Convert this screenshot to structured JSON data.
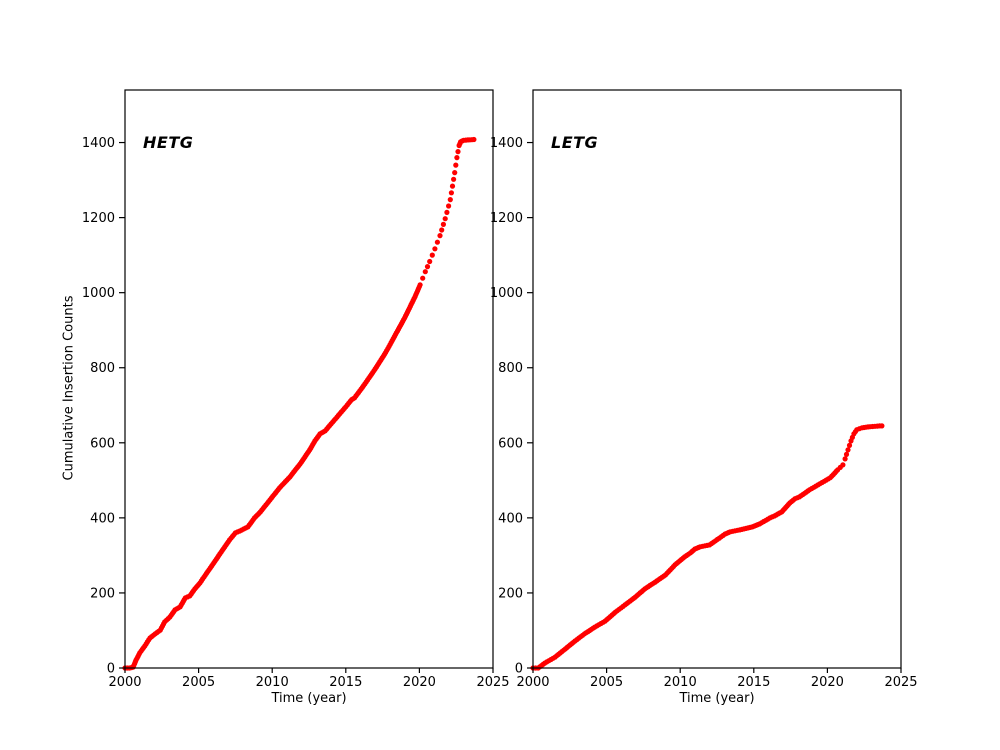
{
  "figure": {
    "background": "#ffffff",
    "ylabel": "Cumulative Insertion Counts"
  },
  "chart_data": [
    {
      "type": "scatter",
      "title": "HETG",
      "xlabel": "Time (year)",
      "ylabel": "Cumulative Insertion Counts",
      "xlim": [
        2000,
        2025
      ],
      "ylim": [
        0,
        1540
      ],
      "xticks": [
        2000,
        2005,
        2010,
        2015,
        2020,
        2025
      ],
      "yticks": [
        0,
        200,
        400,
        600,
        800,
        1000,
        1200,
        1400
      ],
      "marker_color": "#ff0000",
      "legend": "none",
      "grid": false,
      "points": [
        [
          2000.0,
          0
        ],
        [
          2000.3,
          0
        ],
        [
          2000.55,
          2
        ],
        [
          2000.75,
          21
        ],
        [
          2001.0,
          40
        ],
        [
          2001.35,
          59
        ],
        [
          2001.7,
          80
        ],
        [
          2002.05,
          91
        ],
        [
          2002.4,
          101
        ],
        [
          2002.7,
          123
        ],
        [
          2003.05,
          136
        ],
        [
          2003.4,
          155
        ],
        [
          2003.75,
          163
        ],
        [
          2004.1,
          187
        ],
        [
          2004.4,
          192
        ],
        [
          2004.75,
          211
        ],
        [
          2005.1,
          227
        ],
        [
          2005.8,
          267
        ],
        [
          2006.45,
          304
        ],
        [
          2007.1,
          341
        ],
        [
          2007.5,
          360
        ],
        [
          2007.8,
          365
        ],
        [
          2008.35,
          376
        ],
        [
          2008.8,
          400
        ],
        [
          2009.2,
          416
        ],
        [
          2009.85,
          448
        ],
        [
          2010.5,
          480
        ],
        [
          2011.2,
          509
        ],
        [
          2011.9,
          544
        ],
        [
          2012.55,
          581
        ],
        [
          2012.9,
          605
        ],
        [
          2013.25,
          624
        ],
        [
          2013.6,
          632
        ],
        [
          2014.3,
          664
        ],
        [
          2015.0,
          696
        ],
        [
          2015.4,
          715
        ],
        [
          2015.6,
          720
        ],
        [
          2016.3,
          757
        ],
        [
          2017.0,
          797
        ],
        [
          2017.7,
          840
        ],
        [
          2018.3,
          883
        ],
        [
          2019.0,
          933
        ],
        [
          2019.7,
          989
        ],
        [
          2020.05,
          1021
        ],
        [
          2020.4,
          1056
        ],
        [
          2020.7,
          1083
        ],
        [
          2021.05,
          1117
        ],
        [
          2021.4,
          1152
        ],
        [
          2021.75,
          1197
        ],
        [
          2022.1,
          1248
        ],
        [
          2022.4,
          1320
        ],
        [
          2022.55,
          1360
        ],
        [
          2022.7,
          1392
        ],
        [
          2022.8,
          1402
        ],
        [
          2023.0,
          1406
        ],
        [
          2023.3,
          1407
        ],
        [
          2023.7,
          1408
        ]
      ],
      "sparse_ranges": [
        [
          2020.0,
          2022.72
        ]
      ],
      "sparse_spacing": 7
    },
    {
      "type": "scatter",
      "title": "LETG",
      "xlabel": "Time (year)",
      "ylabel": "Cumulative Insertion Counts",
      "xlim": [
        2000,
        2025
      ],
      "ylim": [
        0,
        1540
      ],
      "xticks": [
        2000,
        2005,
        2010,
        2015,
        2020,
        2025
      ],
      "yticks": [
        0,
        200,
        400,
        600,
        800,
        1000,
        1200,
        1400
      ],
      "marker_color": "#ff0000",
      "legend": "none",
      "grid": false,
      "points": [
        [
          2000.0,
          0
        ],
        [
          2000.35,
          0
        ],
        [
          2000.8,
          13
        ],
        [
          2001.5,
          29
        ],
        [
          2002.2,
          51
        ],
        [
          2002.85,
          72
        ],
        [
          2003.5,
          91
        ],
        [
          2004.2,
          109
        ],
        [
          2004.9,
          125
        ],
        [
          2005.6,
          149
        ],
        [
          2006.25,
          168
        ],
        [
          2006.95,
          189
        ],
        [
          2007.6,
          211
        ],
        [
          2008.3,
          229
        ],
        [
          2009.0,
          248
        ],
        [
          2009.65,
          275
        ],
        [
          2010.3,
          296
        ],
        [
          2010.7,
          307
        ],
        [
          2011.0,
          317
        ],
        [
          2011.35,
          323
        ],
        [
          2012.0,
          328
        ],
        [
          2012.4,
          339
        ],
        [
          2013.05,
          357
        ],
        [
          2013.4,
          363
        ],
        [
          2014.05,
          368
        ],
        [
          2014.9,
          376
        ],
        [
          2015.4,
          384
        ],
        [
          2016.1,
          400
        ],
        [
          2016.4,
          405
        ],
        [
          2016.9,
          416
        ],
        [
          2017.45,
          440
        ],
        [
          2017.8,
          451
        ],
        [
          2018.1,
          456
        ],
        [
          2018.8,
          475
        ],
        [
          2019.5,
          491
        ],
        [
          2020.2,
          507
        ],
        [
          2020.7,
          528
        ],
        [
          2021.05,
          541
        ],
        [
          2021.2,
          557
        ],
        [
          2021.4,
          581
        ],
        [
          2021.6,
          605
        ],
        [
          2021.8,
          624
        ],
        [
          2022.0,
          635
        ],
        [
          2022.35,
          640
        ],
        [
          2022.9,
          643
        ],
        [
          2023.55,
          645
        ],
        [
          2023.7,
          645
        ]
      ],
      "sparse_ranges": [
        [
          2020.75,
          2021.85
        ]
      ],
      "sparse_spacing": 4.5
    }
  ]
}
